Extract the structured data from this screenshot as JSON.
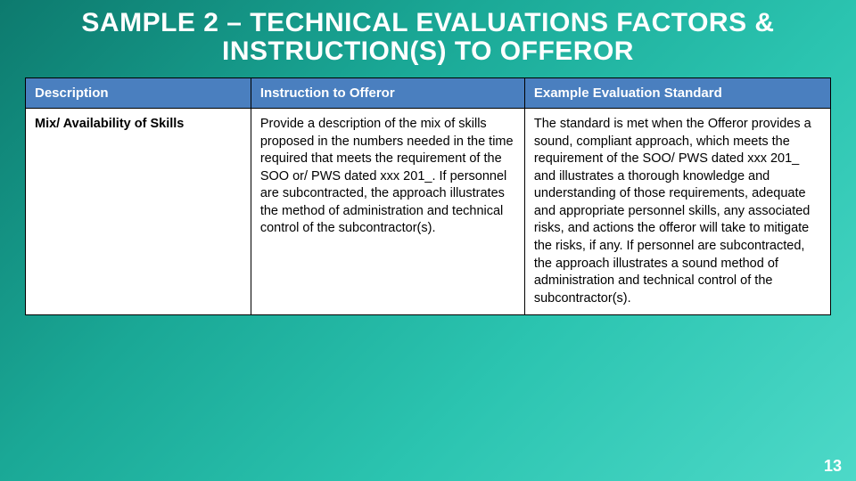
{
  "title": "SAMPLE 2 – TECHNICAL EVALUATIONS FACTORS & INSTRUCTION(S) TO OFFEROR",
  "page_number": "13",
  "colors": {
    "background_gradient_start": "#0d7a6e",
    "background_gradient_end": "#4dd9c8",
    "header_bg": "#4a7fbf",
    "header_text": "#ffffff",
    "cell_bg": "#ffffff",
    "cell_text": "#000000",
    "border": "#000000",
    "title_text": "#ffffff"
  },
  "typography": {
    "title_fontsize": 30,
    "title_weight": 900,
    "header_fontsize": 15,
    "header_weight": "bold",
    "cell_fontsize": 14.5,
    "font_family": "Arial"
  },
  "table": {
    "type": "table",
    "columns": [
      {
        "label": "Description",
        "width_pct": 28
      },
      {
        "label": "Instruction to Offeror",
        "width_pct": 34
      },
      {
        "label": "Example Evaluation Standard",
        "width_pct": 38
      }
    ],
    "rows": [
      {
        "description": "Mix/ Availability of Skills",
        "instruction": "Provide a description of the mix of skills proposed in the numbers needed in the time required that meets the requirement of the SOO or/ PWS dated xxx 201_. If personnel are subcontracted, the approach illustrates the method of administration and technical control of the subcontractor(s).",
        "standard": "The standard is met when the Offeror provides a sound, compliant approach, which meets the requirement of the SOO/ PWS dated xxx 201_ and illustrates a thorough knowledge and understanding of those requirements, adequate and appropriate personnel skills, any associated risks, and actions the offeror will take to mitigate the risks, if any. If personnel are subcontracted, the approach illustrates a sound method of administration and technical control of the subcontractor(s)."
      }
    ]
  }
}
